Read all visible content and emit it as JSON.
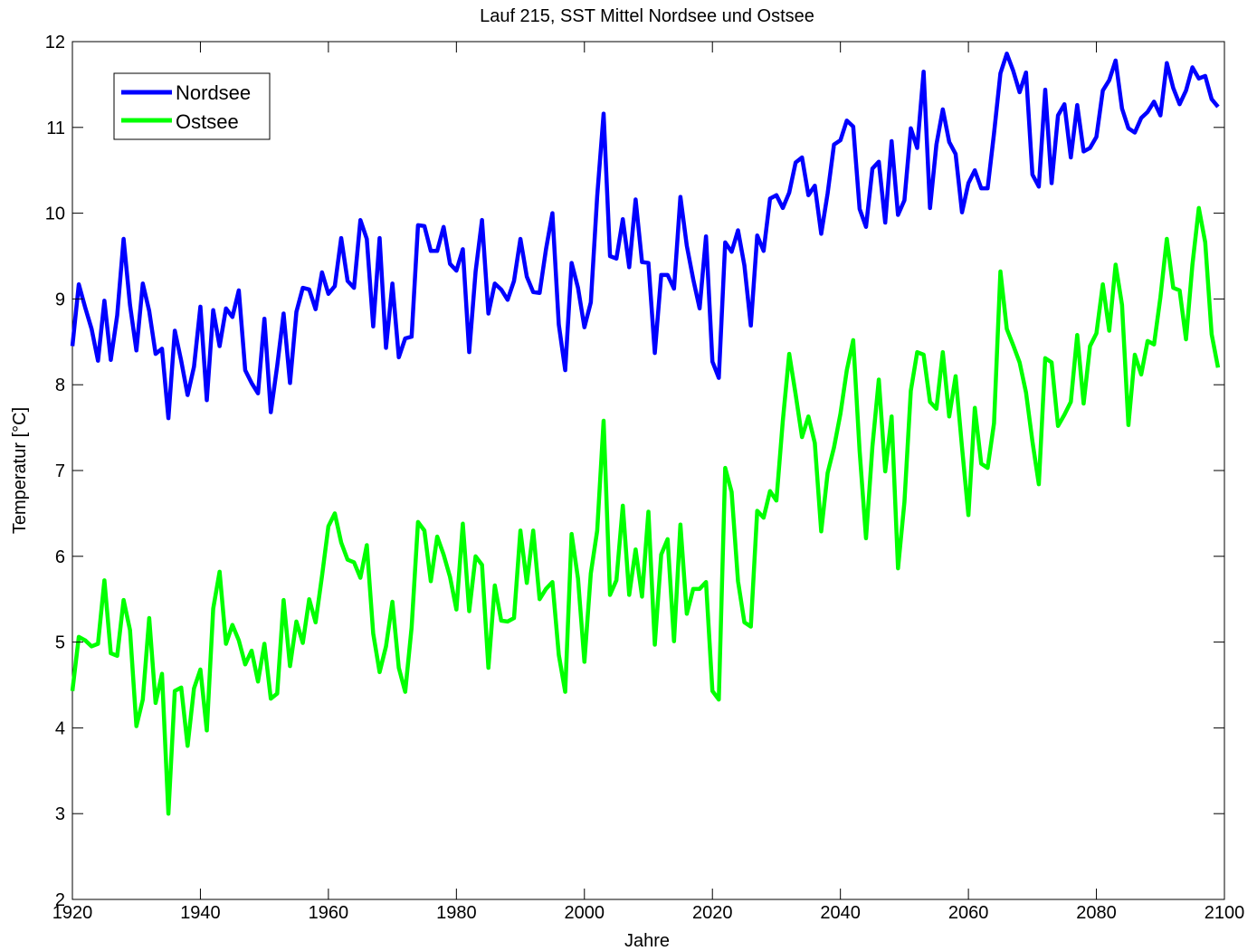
{
  "chart_data": {
    "type": "line",
    "title": "Lauf 215, SST Mittel Nordsee und Ostsee",
    "xlabel": "Jahre",
    "ylabel": "Temperatur [°C]",
    "xlim": [
      1920,
      2100
    ],
    "ylim": [
      2,
      12
    ],
    "xticks": [
      1920,
      1940,
      1960,
      1980,
      2000,
      2020,
      2040,
      2060,
      2080,
      2100
    ],
    "yticks": [
      2,
      3,
      4,
      5,
      6,
      7,
      8,
      9,
      10,
      11,
      12
    ],
    "grid": false,
    "legend_position": "top-left",
    "series": [
      {
        "name": "Nordsee",
        "color": "#0000ff",
        "x": [
          1920,
          1921,
          1922,
          1923,
          1924,
          1925,
          1926,
          1927,
          1928,
          1929,
          1930,
          1931,
          1932,
          1933,
          1934,
          1935,
          1936,
          1937,
          1938,
          1939,
          1940,
          1941,
          1942,
          1943,
          1944,
          1945,
          1946,
          1947,
          1948,
          1949,
          1950,
          1951,
          1952,
          1953,
          1954,
          1955,
          1956,
          1957,
          1958,
          1959,
          1960,
          1961,
          1962,
          1963,
          1964,
          1965,
          1966,
          1967,
          1968,
          1969,
          1970,
          1971,
          1972,
          1973,
          1974,
          1975,
          1976,
          1977,
          1978,
          1979,
          1980,
          1981,
          1982,
          1983,
          1984,
          1985,
          1986,
          1987,
          1988,
          1989,
          1990,
          1991,
          1992,
          1993,
          1994,
          1995,
          1996,
          1997,
          1998,
          1999,
          2000,
          2001,
          2002,
          2003,
          2004,
          2005,
          2006,
          2007,
          2008,
          2009,
          2010,
          2011,
          2012,
          2013,
          2014,
          2015,
          2016,
          2017,
          2018,
          2019,
          2020,
          2021,
          2022,
          2023,
          2024,
          2025,
          2026,
          2027,
          2028,
          2029,
          2030,
          2031,
          2032,
          2033,
          2034,
          2035,
          2036,
          2037,
          2038,
          2039,
          2040,
          2041,
          2042,
          2043,
          2044,
          2045,
          2046,
          2047,
          2048,
          2049,
          2050,
          2051,
          2052,
          2053,
          2054,
          2055,
          2056,
          2057,
          2058,
          2059,
          2060,
          2061,
          2062,
          2063,
          2064,
          2065,
          2066,
          2067,
          2068,
          2069,
          2070,
          2071,
          2072,
          2073,
          2074,
          2075,
          2076,
          2077,
          2078,
          2079,
          2080,
          2081,
          2082,
          2083,
          2084,
          2085,
          2086,
          2087,
          2088,
          2089,
          2090,
          2091,
          2092,
          2093,
          2094,
          2095,
          2096,
          2097,
          2098,
          2099
        ],
        "values": [
          8.45,
          9.17,
          8.9,
          8.65,
          8.28,
          8.98,
          8.29,
          8.81,
          9.7,
          8.93,
          8.4,
          9.18,
          8.86,
          8.36,
          8.42,
          7.61,
          8.63,
          8.28,
          7.88,
          8.21,
          8.91,
          7.82,
          8.87,
          8.45,
          8.89,
          8.79,
          9.1,
          8.17,
          8.02,
          7.9,
          8.77,
          7.68,
          8.22,
          8.83,
          8.02,
          8.85,
          9.13,
          9.11,
          8.88,
          9.31,
          9.06,
          9.15,
          9.71,
          9.21,
          9.13,
          9.92,
          9.7,
          8.68,
          9.71,
          8.43,
          9.18,
          8.32,
          8.54,
          8.56,
          9.86,
          9.85,
          9.56,
          9.56,
          9.84,
          9.41,
          9.33,
          9.58,
          8.38,
          9.32,
          9.92,
          8.83,
          9.18,
          9.11,
          8.99,
          9.21,
          9.7,
          9.26,
          9.08,
          9.07,
          9.58,
          10.0,
          8.7,
          8.17,
          9.42,
          9.13,
          8.67,
          8.96,
          10.2,
          11.16,
          9.5,
          9.47,
          9.93,
          9.37,
          10.16,
          9.43,
          9.42,
          8.37,
          9.28,
          9.28,
          9.12,
          10.19,
          9.62,
          9.23,
          8.89,
          9.73,
          8.27,
          8.08,
          9.66,
          9.55,
          9.8,
          9.39,
          8.69,
          9.74,
          9.56,
          10.17,
          10.21,
          10.06,
          10.24,
          10.59,
          10.65,
          10.21,
          10.32,
          9.76,
          10.23,
          10.8,
          10.85,
          11.08,
          11.01,
          10.05,
          9.84,
          10.52,
          10.6,
          9.89,
          10.84,
          9.98,
          10.15,
          10.99,
          10.76,
          11.65,
          10.06,
          10.8,
          11.21,
          10.83,
          10.69,
          10.01,
          10.35,
          10.5,
          10.29,
          10.29,
          10.93,
          11.63,
          11.86,
          11.66,
          11.41,
          11.64,
          10.45,
          10.31,
          11.44,
          10.35,
          11.14,
          11.27,
          10.65,
          11.26,
          10.72,
          10.76,
          10.89,
          11.43,
          11.55,
          11.78,
          11.22,
          10.99,
          10.94,
          11.11,
          11.18,
          11.3,
          11.14,
          11.75,
          11.46,
          11.27,
          11.43,
          11.7,
          11.57,
          11.6,
          11.33,
          11.24
        ]
      },
      {
        "name": "Ostsee",
        "color": "#00ff00",
        "x": [
          1920,
          1921,
          1922,
          1923,
          1924,
          1925,
          1926,
          1927,
          1928,
          1929,
          1930,
          1931,
          1932,
          1933,
          1934,
          1935,
          1936,
          1937,
          1938,
          1939,
          1940,
          1941,
          1942,
          1943,
          1944,
          1945,
          1946,
          1947,
          1948,
          1949,
          1950,
          1951,
          1952,
          1953,
          1954,
          1955,
          1956,
          1957,
          1958,
          1959,
          1960,
          1961,
          1962,
          1963,
          1964,
          1965,
          1966,
          1967,
          1968,
          1969,
          1970,
          1971,
          1972,
          1973,
          1974,
          1975,
          1976,
          1977,
          1978,
          1979,
          1980,
          1981,
          1982,
          1983,
          1984,
          1985,
          1986,
          1987,
          1988,
          1989,
          1990,
          1991,
          1992,
          1993,
          1994,
          1995,
          1996,
          1997,
          1998,
          1999,
          2000,
          2001,
          2002,
          2003,
          2004,
          2005,
          2006,
          2007,
          2008,
          2009,
          2010,
          2011,
          2012,
          2013,
          2014,
          2015,
          2016,
          2017,
          2018,
          2019,
          2020,
          2021,
          2022,
          2023,
          2024,
          2025,
          2026,
          2027,
          2028,
          2029,
          2030,
          2031,
          2032,
          2033,
          2034,
          2035,
          2036,
          2037,
          2038,
          2039,
          2040,
          2041,
          2042,
          2043,
          2044,
          2045,
          2046,
          2047,
          2048,
          2049,
          2050,
          2051,
          2052,
          2053,
          2054,
          2055,
          2056,
          2057,
          2058,
          2059,
          2060,
          2061,
          2062,
          2063,
          2064,
          2065,
          2066,
          2067,
          2068,
          2069,
          2070,
          2071,
          2072,
          2073,
          2074,
          2075,
          2076,
          2077,
          2078,
          2079,
          2080,
          2081,
          2082,
          2083,
          2084,
          2085,
          2086,
          2087,
          2088,
          2089,
          2090,
          2091,
          2092,
          2093,
          2094,
          2095,
          2096,
          2097,
          2098,
          2099
        ],
        "values": [
          4.43,
          5.06,
          5.02,
          4.95,
          4.98,
          5.72,
          4.87,
          4.84,
          5.49,
          5.14,
          4.02,
          4.33,
          5.28,
          4.29,
          4.63,
          3.0,
          4.43,
          4.47,
          3.79,
          4.46,
          4.68,
          3.97,
          5.39,
          5.82,
          4.98,
          5.2,
          5.02,
          4.74,
          4.9,
          4.54,
          4.98,
          4.34,
          4.4,
          5.49,
          4.72,
          5.24,
          4.99,
          5.5,
          5.23,
          5.77,
          6.35,
          6.5,
          6.16,
          5.96,
          5.93,
          5.75,
          6.13,
          5.1,
          4.65,
          4.95,
          5.47,
          4.7,
          4.42,
          5.17,
          6.4,
          6.3,
          5.71,
          6.23,
          6.02,
          5.76,
          5.38,
          6.38,
          5.36,
          6.0,
          5.9,
          4.7,
          5.66,
          5.25,
          5.24,
          5.28,
          6.3,
          5.69,
          6.3,
          5.5,
          5.62,
          5.7,
          4.85,
          4.42,
          6.26,
          5.74,
          4.77,
          5.8,
          6.3,
          7.58,
          5.55,
          5.72,
          6.59,
          5.55,
          6.08,
          5.53,
          6.52,
          4.97,
          6.02,
          6.2,
          5.01,
          6.37,
          5.33,
          5.62,
          5.62,
          5.7,
          4.43,
          4.33,
          7.03,
          6.75,
          5.71,
          5.23,
          5.18,
          6.53,
          6.45,
          6.76,
          6.65,
          7.58,
          8.36,
          7.89,
          7.39,
          7.63,
          7.32,
          6.29,
          6.97,
          7.27,
          7.66,
          8.17,
          8.52,
          7.23,
          6.21,
          7.28,
          8.06,
          6.99,
          7.63,
          5.86,
          6.63,
          7.93,
          8.38,
          8.35,
          7.8,
          7.72,
          8.38,
          7.63,
          8.1,
          7.27,
          6.48,
          7.73,
          7.08,
          7.03,
          7.55,
          9.32,
          8.65,
          8.46,
          8.26,
          7.91,
          7.34,
          6.84,
          8.31,
          8.26,
          7.52,
          7.65,
          7.8,
          8.58,
          7.78,
          8.45,
          8.6,
          9.17,
          8.63,
          9.4,
          8.93,
          7.53,
          8.35,
          8.12,
          8.51,
          8.47,
          9.02,
          9.7,
          9.13,
          9.1,
          8.53,
          9.4,
          10.06,
          9.66,
          8.59,
          8.2
        ]
      }
    ]
  }
}
